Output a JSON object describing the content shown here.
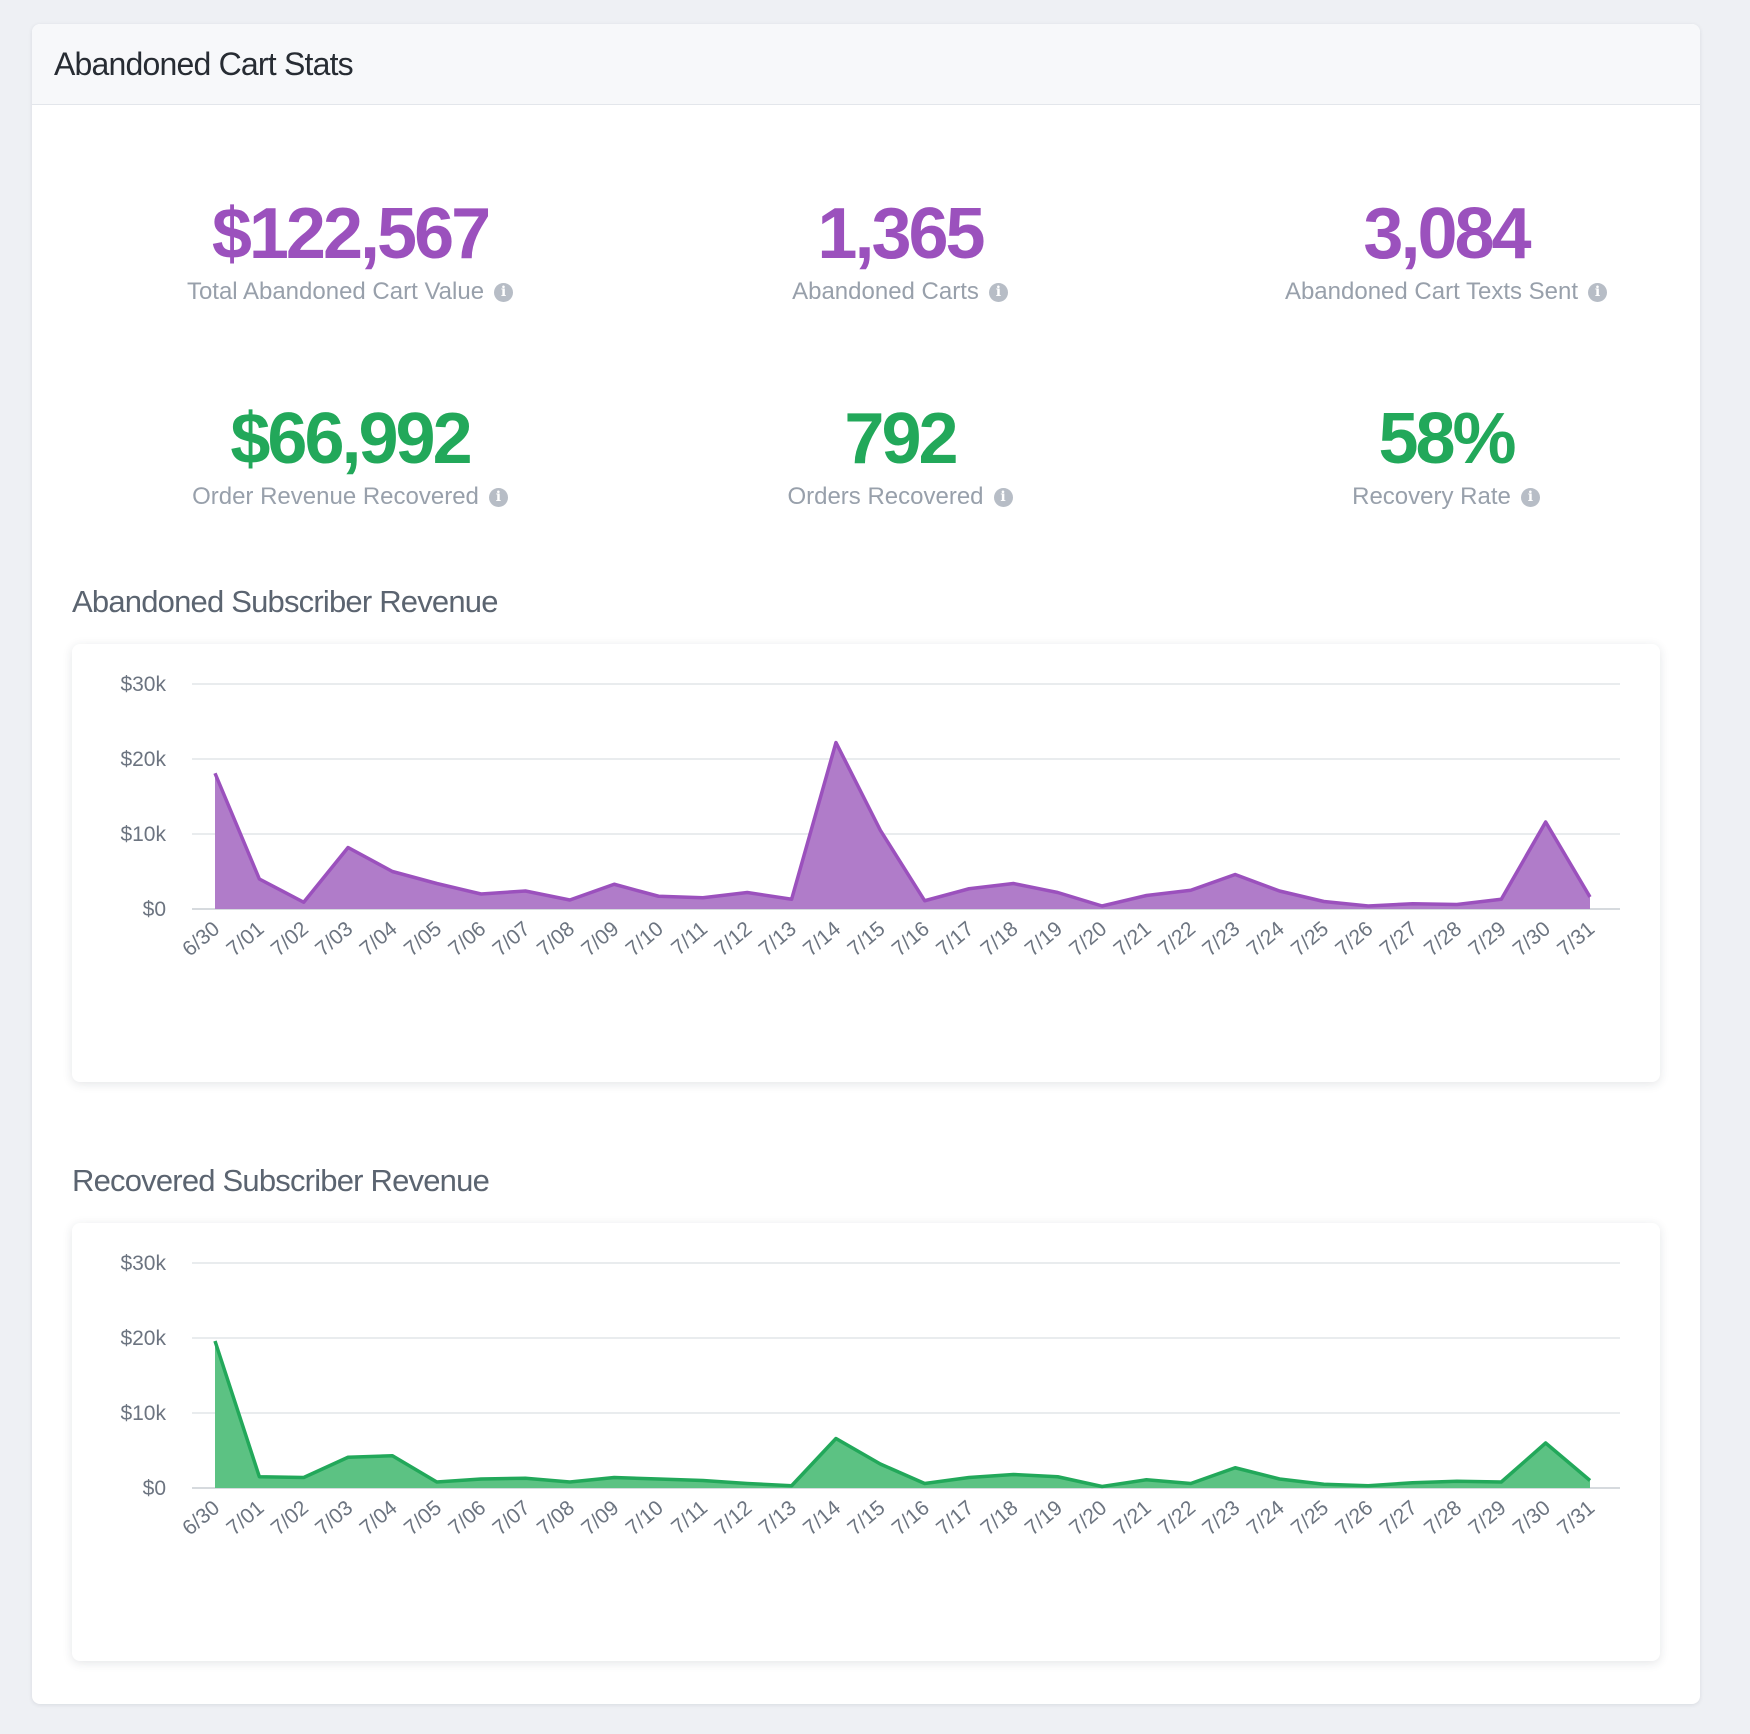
{
  "panel": {
    "title": "Abandoned Cart Stats"
  },
  "stats": [
    {
      "value": "$122,567",
      "label": "Total Abandoned Cart Value",
      "color": "#9b51bd"
    },
    {
      "value": "1,365",
      "label": "Abandoned Carts",
      "color": "#9b51bd"
    },
    {
      "value": "3,084",
      "label": "Abandoned Cart Texts Sent",
      "color": "#9b51bd"
    },
    {
      "value": "$66,992",
      "label": "Order Revenue Recovered",
      "color": "#22a85a"
    },
    {
      "value": "792",
      "label": "Orders Recovered",
      "color": "#22a85a"
    },
    {
      "value": "58%",
      "label": "Recovery Rate",
      "color": "#22a85a"
    }
  ],
  "info_icon": {
    "icon": "info-icon",
    "glyph": "i"
  },
  "sections": {
    "abandoned_title": "Abandoned Subscriber Revenue",
    "recovered_title": "Recovered Subscriber Revenue"
  },
  "chart_data": [
    {
      "type": "area",
      "title": "Abandoned Subscriber Revenue",
      "xlabel": "",
      "ylabel": "",
      "ylim": [
        0,
        30000
      ],
      "yticks": [
        0,
        10000,
        20000,
        30000
      ],
      "ytick_labels": [
        "$0",
        "$10k",
        "$20k",
        "$30k"
      ],
      "grid": true,
      "color": "#9b51bd",
      "fill": "#b07cc9",
      "categories": [
        "6/30",
        "7/01",
        "7/02",
        "7/03",
        "7/04",
        "7/05",
        "7/06",
        "7/07",
        "7/08",
        "7/09",
        "7/10",
        "7/11",
        "7/12",
        "7/13",
        "7/14",
        "7/15",
        "7/16",
        "7/17",
        "7/18",
        "7/19",
        "7/20",
        "7/21",
        "7/22",
        "7/23",
        "7/24",
        "7/25",
        "7/26",
        "7/27",
        "7/28",
        "7/29",
        "7/30",
        "7/31"
      ],
      "values": [
        18100,
        4000,
        900,
        8200,
        5000,
        3400,
        2000,
        2400,
        1200,
        3300,
        1700,
        1500,
        2200,
        1300,
        22200,
        10500,
        1100,
        2700,
        3400,
        2200,
        400,
        1800,
        2500,
        4600,
        2400,
        1000,
        400,
        700,
        600,
        1300,
        11600,
        1600
      ]
    },
    {
      "type": "area",
      "title": "Recovered Subscriber Revenue",
      "xlabel": "",
      "ylabel": "",
      "ylim": [
        0,
        30000
      ],
      "yticks": [
        0,
        10000,
        20000,
        30000
      ],
      "ytick_labels": [
        "$0",
        "$10k",
        "$20k",
        "$30k"
      ],
      "grid": true,
      "color": "#22a85a",
      "fill": "#5cc283",
      "categories": [
        "6/30",
        "7/01",
        "7/02",
        "7/03",
        "7/04",
        "7/05",
        "7/06",
        "7/07",
        "7/08",
        "7/09",
        "7/10",
        "7/11",
        "7/12",
        "7/13",
        "7/14",
        "7/15",
        "7/16",
        "7/17",
        "7/18",
        "7/19",
        "7/20",
        "7/21",
        "7/22",
        "7/23",
        "7/24",
        "7/25",
        "7/26",
        "7/27",
        "7/28",
        "7/29",
        "7/30",
        "7/31"
      ],
      "values": [
        19600,
        1500,
        1400,
        4100,
        4300,
        800,
        1200,
        1300,
        800,
        1400,
        1200,
        1000,
        600,
        300,
        6600,
        3200,
        600,
        1400,
        1800,
        1500,
        200,
        1100,
        600,
        2700,
        1200,
        500,
        300,
        700,
        900,
        800,
        6000,
        1000
      ]
    }
  ]
}
